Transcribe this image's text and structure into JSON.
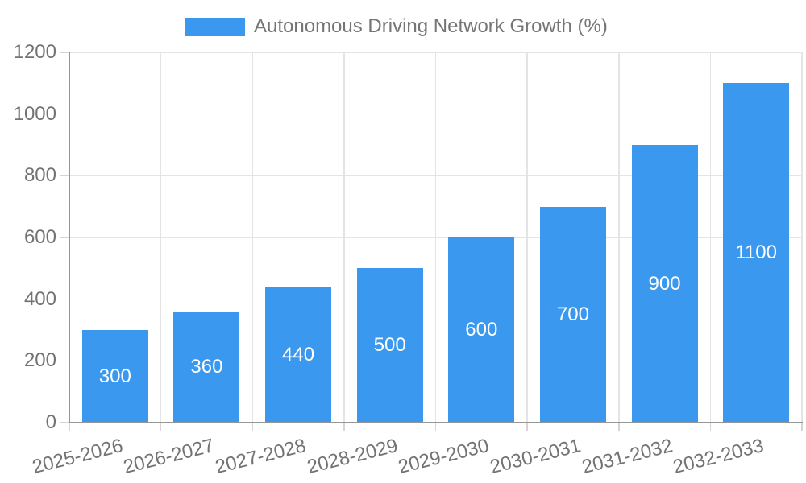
{
  "chart_data": {
    "type": "bar",
    "title": "Autonomous Driving Network Growth (%)",
    "legend_position": "top",
    "categories": [
      "2025-2026",
      "2026-2027",
      "2027-2028",
      "2028-2029",
      "2029-2030",
      "2030-2031",
      "2031-2032",
      "2032-2033"
    ],
    "values": [
      300,
      360,
      440,
      500,
      600,
      700,
      900,
      1100
    ],
    "xlabel": "",
    "ylabel": "",
    "ylim": [
      0,
      1200
    ],
    "yticks": [
      0,
      200,
      400,
      600,
      800,
      1000,
      1200
    ],
    "grid": "on",
    "x_tick_rotation_deg": -14,
    "colors": {
      "bar": "#3A99EE",
      "bar_value_text": "#FFFFFF",
      "axis_line": "#969696",
      "gridline": "#E4E4E4",
      "tick_mark": "#D4D4D4",
      "tick_text": "#737373",
      "legend_text": "#757575",
      "background": "#FFFFFF"
    }
  }
}
